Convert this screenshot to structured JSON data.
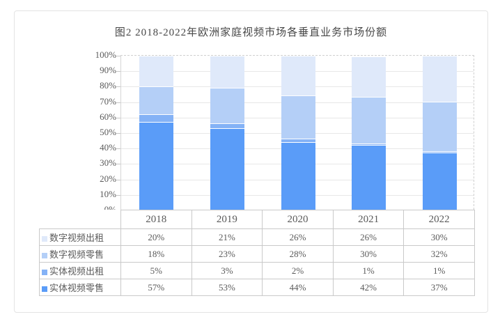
{
  "chart_data": {
    "type": "bar",
    "stacked": true,
    "title": "图2 2018-2022年欧洲家庭视频市场各垂直业务市场份额",
    "categories": [
      "2018",
      "2019",
      "2020",
      "2021",
      "2022"
    ],
    "series": [
      {
        "name": "实体视频零售",
        "color": "#5A9CF8",
        "values": [
          57,
          53,
          44,
          42,
          37
        ]
      },
      {
        "name": "实体视频出租",
        "color": "#84B2F6",
        "values": [
          5,
          3,
          2,
          1,
          1
        ]
      },
      {
        "name": "数字视频零售",
        "color": "#B4CFF7",
        "values": [
          18,
          23,
          28,
          30,
          32
        ]
      },
      {
        "name": "数字视频出租",
        "color": "#DFE9FA",
        "values": [
          20,
          21,
          26,
          26,
          30
        ]
      }
    ],
    "table_row_order": [
      "数字视频出租",
      "数字视频零售",
      "实体视频出租",
      "实体视频零售"
    ],
    "value_suffix": "%",
    "yticks": [
      "100%",
      "90%",
      "80%",
      "70%",
      "60%",
      "50%",
      "40%",
      "30%",
      "20%",
      "10%",
      "0%"
    ],
    "ylim": [
      0,
      100
    ],
    "grid": true,
    "legend_position": "table-left-column"
  }
}
